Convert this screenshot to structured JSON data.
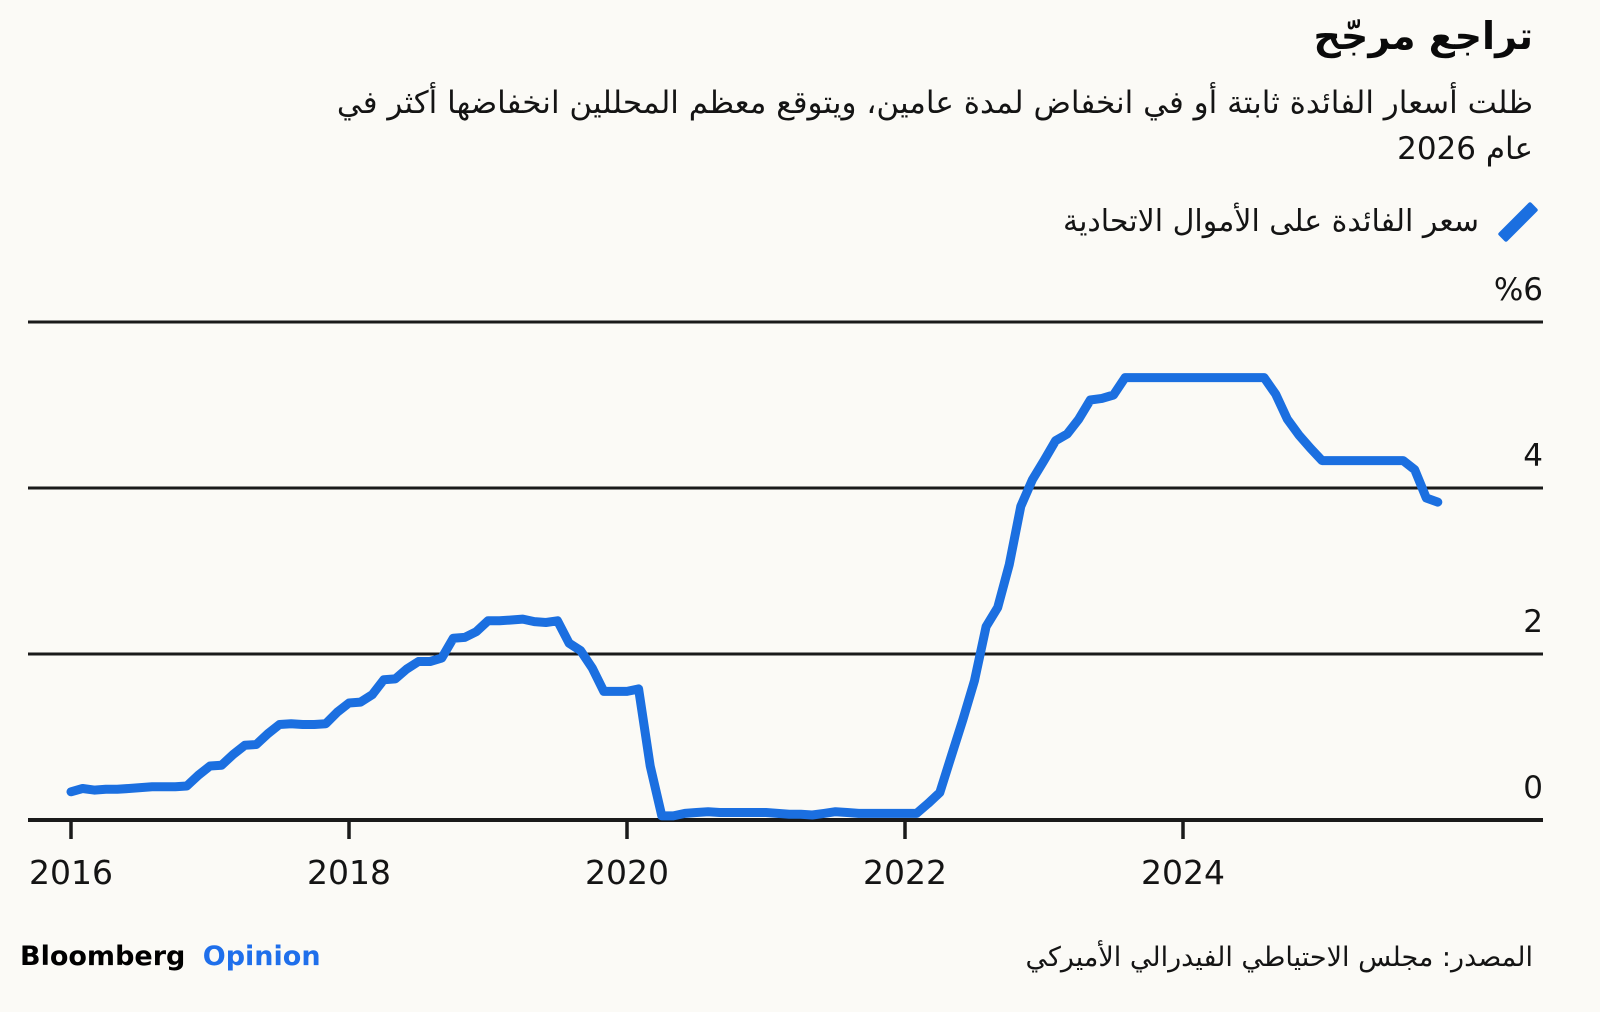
{
  "header": {
    "title": "تراجع مرجّح",
    "subtitle_lines": [
      "ظلت أسعار الفائدة ثابتة أو في انخفاض لمدة عامين، ويتوقع معظم المحللين انخفاضها أكثر في",
      "عام 2026"
    ]
  },
  "legend": {
    "label": "سعر الفائدة على الأموال الاتحادية"
  },
  "footer": {
    "brand": "Bloomberg",
    "brand_suffix": "Opinion",
    "source": "المصدر: مجلس الاحتياطي الفيدرالي الأميركي"
  },
  "colors": {
    "line": "#1b6fe0",
    "opinion_blue": "#1f6feb",
    "text": "#141414",
    "grid": "#1a1a1a",
    "background": "#fbfaf6"
  },
  "chart_data": {
    "type": "line",
    "title": "تراجع مرجّح",
    "subtitle": "ظلت أسعار الفائدة ثابتة أو في انخفاض لمدة عامين، ويتوقع معظم المحللين انخفاضها أكثر في عام 2026",
    "xlabel": "",
    "ylabel": "%",
    "ylim": [
      0,
      6
    ],
    "xlim": [
      2015.7,
      2026.6
    ],
    "grid": "horizontal",
    "gridline_values": [
      6,
      4,
      2
    ],
    "legend_position": "top-right",
    "yticks": [
      {
        "value": 6,
        "label": "%6"
      },
      {
        "value": 4,
        "label": "4"
      },
      {
        "value": 2,
        "label": "2"
      },
      {
        "value": 0,
        "label": "0"
      }
    ],
    "xticks": [
      {
        "value": 2016,
        "label": "2016"
      },
      {
        "value": 2018,
        "label": "2018"
      },
      {
        "value": 2020,
        "label": "2020"
      },
      {
        "value": 2022,
        "label": "2022"
      },
      {
        "value": 2024,
        "label": "2024"
      }
    ],
    "series": [
      {
        "name": "سعر الفائدة على الأموال الاتحادية",
        "color": "#1b6fe0",
        "unit": "percent",
        "cadence": "monthly",
        "monthly_values_by_year": {
          "2016": [
            0.34,
            0.38,
            0.36,
            0.37,
            0.37,
            0.38,
            0.39,
            0.4,
            0.4,
            0.4,
            0.41,
            0.54
          ],
          "2017": [
            0.65,
            0.66,
            0.79,
            0.9,
            0.91,
            1.04,
            1.15,
            1.16,
            1.15,
            1.15,
            1.16,
            1.3
          ],
          "2018": [
            1.41,
            1.42,
            1.51,
            1.69,
            1.7,
            1.82,
            1.91,
            1.91,
            1.95,
            2.19,
            2.2,
            2.27
          ],
          "2019": [
            2.4,
            2.4,
            2.41,
            2.42,
            2.39,
            2.38,
            2.4,
            2.13,
            2.04,
            1.83,
            1.55,
            1.55
          ],
          "2020": [
            1.55,
            1.58,
            0.65,
            0.05,
            0.05,
            0.08,
            0.09,
            0.1,
            0.09,
            0.09,
            0.09,
            0.09
          ],
          "2021": [
            0.09,
            0.08,
            0.07,
            0.07,
            0.06,
            0.08,
            0.1,
            0.09,
            0.08,
            0.08,
            0.08,
            0.08
          ],
          "2022": [
            0.08,
            0.08,
            0.2,
            0.33,
            0.77,
            1.21,
            1.68,
            2.33,
            2.56,
            3.08,
            3.78,
            4.1
          ],
          "2023": [
            4.33,
            4.57,
            4.65,
            4.83,
            5.06,
            5.08,
            5.12,
            5.33,
            5.33,
            5.33,
            5.33,
            5.33
          ],
          "2024": [
            5.33,
            5.33,
            5.33,
            5.33,
            5.33,
            5.33,
            5.33,
            5.33,
            5.13,
            4.83,
            4.64,
            4.48
          ],
          "2025": [
            4.33,
            4.33,
            4.33,
            4.33,
            4.33,
            4.33,
            4.33,
            4.33,
            4.22,
            3.88,
            3.83
          ]
        }
      }
    ]
  }
}
